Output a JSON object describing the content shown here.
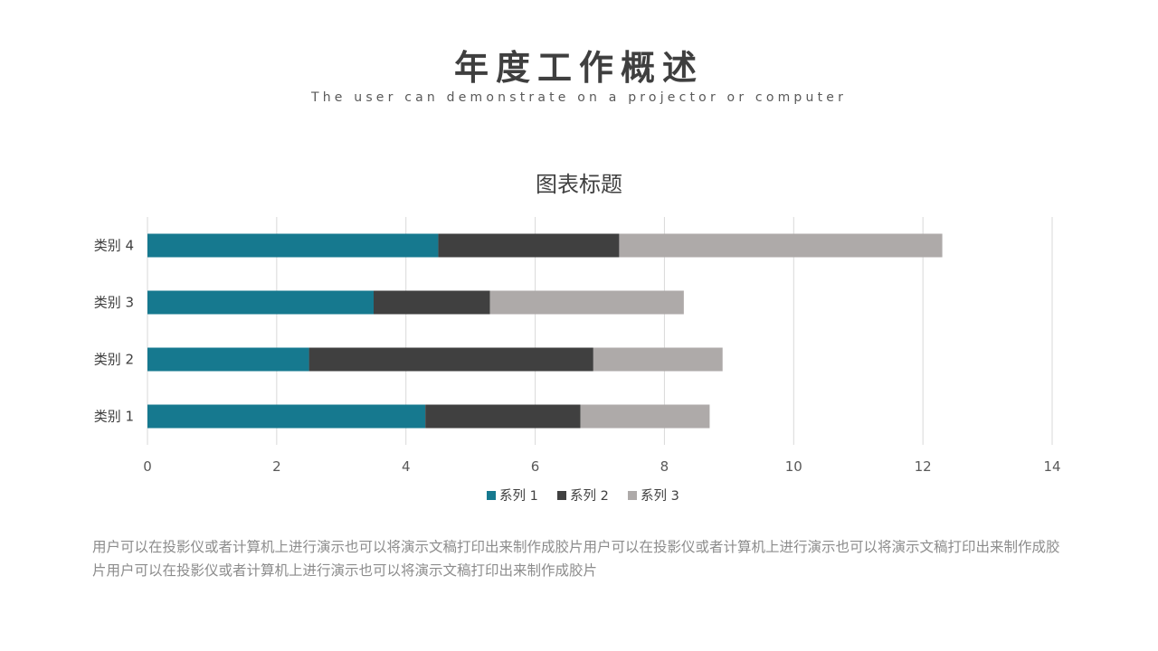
{
  "header": {
    "title": "年度工作概述",
    "subtitle": "The user can demonstrate on a projector or computer"
  },
  "chart_data": {
    "type": "bar",
    "orientation": "horizontal",
    "stacked": true,
    "title": "图表标题",
    "categories": [
      "类别 1",
      "类别 2",
      "类别 3",
      "类别 4"
    ],
    "series": [
      {
        "name": "系列 1",
        "values": [
          4.3,
          2.5,
          3.5,
          4.5
        ],
        "color": "#16798f"
      },
      {
        "name": "系列 2",
        "values": [
          2.4,
          4.4,
          1.8,
          2.8
        ],
        "color": "#404040"
      },
      {
        "name": "系列 3",
        "values": [
          2.0,
          2.0,
          3.0,
          5.0
        ],
        "color": "#aeaaa9"
      }
    ],
    "xlim": [
      0,
      14
    ],
    "xticks": [
      0,
      2,
      4,
      6,
      8,
      10,
      12,
      14
    ],
    "grid": true,
    "legend": "bottom",
    "xlabel": "",
    "ylabel": ""
  },
  "body": {
    "text": "用户可以在投影仪或者计算机上进行演示也可以将演示文稿打印出来制作成胶片用户可以在投影仪或者计算机上进行演示也可以将演示文稿打印出来制作成胶片用户可以在投影仪或者计算机上进行演示也可以将演示文稿打印出来制作成胶片"
  }
}
